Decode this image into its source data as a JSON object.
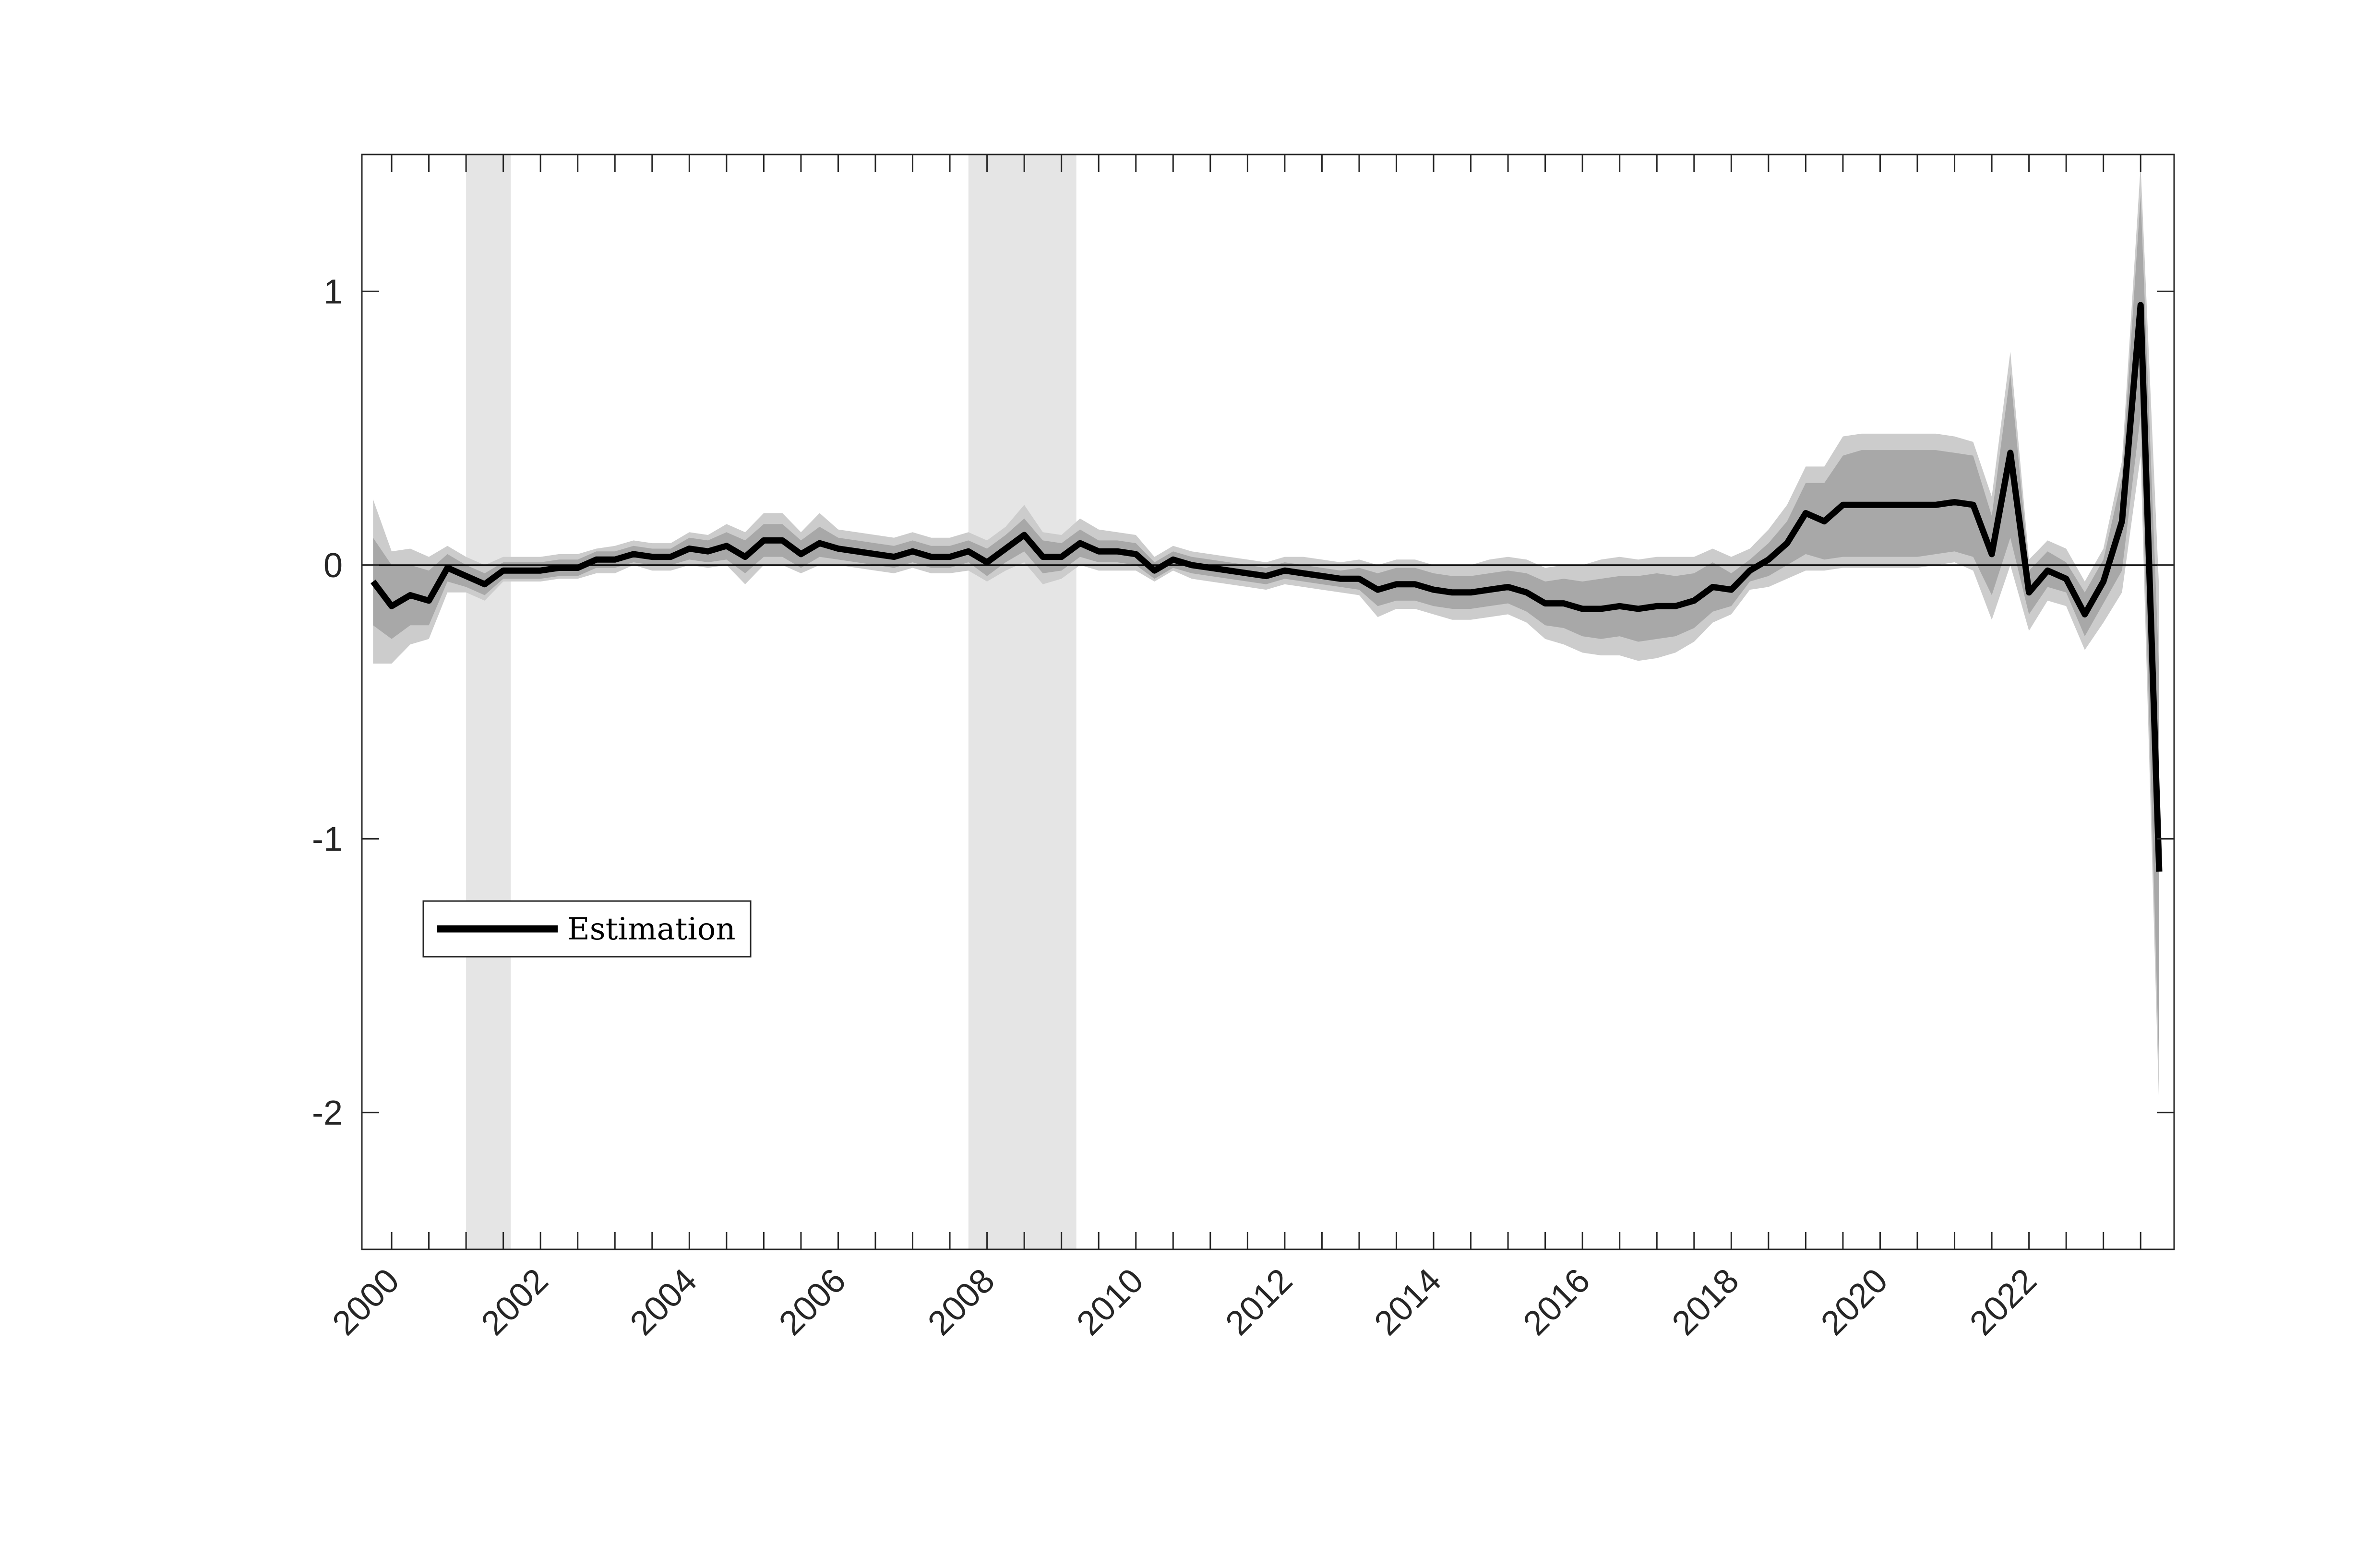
{
  "chart_data": {
    "type": "line",
    "title": "",
    "xlabel": "",
    "ylabel": "",
    "xlim": [
      1999.6,
      2023.95
    ],
    "ylim": [
      -2.5,
      1.5
    ],
    "yticks": [
      1,
      0,
      -1,
      -2
    ],
    "ytick_labels": [
      "1",
      "0",
      "-1",
      "-2"
    ],
    "xticks": [
      2000,
      2002,
      2004,
      2006,
      2008,
      2010,
      2012,
      2014,
      2016,
      2018,
      2020,
      2022
    ],
    "xtick_labels": [
      "2000",
      "2002",
      "2004",
      "2006",
      "2008",
      "2010",
      "2012",
      "2014",
      "2016",
      "2018",
      "2020",
      "2022"
    ],
    "grid": false,
    "zero_line": 0,
    "legend": {
      "position": "center-left",
      "entries": [
        "Estimation"
      ]
    },
    "shaded_periods": [
      {
        "start": 2001.0,
        "end": 2001.6
      },
      {
        "start": 2007.75,
        "end": 2009.2
      }
    ],
    "series": [
      {
        "name": "Estimation",
        "color": "#000000",
        "x": [
          1999.75,
          2000.0,
          2000.25,
          2000.5,
          2000.75,
          2001.0,
          2001.25,
          2001.5,
          2001.75,
          2002.0,
          2002.25,
          2002.5,
          2002.75,
          2003.0,
          2003.25,
          2003.5,
          2003.75,
          2004.0,
          2004.25,
          2004.5,
          2004.75,
          2005.0,
          2005.25,
          2005.5,
          2005.75,
          2006.0,
          2006.25,
          2006.5,
          2006.75,
          2007.0,
          2007.25,
          2007.5,
          2007.75,
          2008.0,
          2008.25,
          2008.5,
          2008.75,
          2009.0,
          2009.25,
          2009.5,
          2009.75,
          2010.0,
          2010.25,
          2010.5,
          2010.75,
          2011.0,
          2011.25,
          2011.5,
          2011.75,
          2012.0,
          2012.25,
          2012.5,
          2012.75,
          2013.0,
          2013.25,
          2013.5,
          2013.75,
          2014.0,
          2014.25,
          2014.5,
          2014.75,
          2015.0,
          2015.25,
          2015.5,
          2015.75,
          2016.0,
          2016.25,
          2016.5,
          2016.75,
          2017.0,
          2017.25,
          2017.5,
          2017.75,
          2018.0,
          2018.25,
          2018.5,
          2018.75,
          2019.0,
          2019.25,
          2019.5,
          2019.75,
          2020.0,
          2020.25,
          2020.5,
          2020.75,
          2021.0,
          2021.25,
          2021.5,
          2021.75,
          2022.0,
          2022.25,
          2022.5,
          2022.75,
          2023.0,
          2023.25,
          2023.5,
          2023.75
        ],
        "y": [
          -0.06,
          -0.15,
          -0.11,
          -0.13,
          -0.01,
          -0.04,
          -0.07,
          -0.02,
          -0.02,
          -0.02,
          -0.01,
          -0.01,
          0.02,
          0.02,
          0.04,
          0.03,
          0.03,
          0.06,
          0.05,
          0.07,
          0.03,
          0.09,
          0.09,
          0.04,
          0.08,
          0.06,
          0.05,
          0.04,
          0.03,
          0.05,
          0.03,
          0.03,
          0.05,
          0.01,
          0.06,
          0.11,
          0.03,
          0.03,
          0.08,
          0.05,
          0.05,
          0.04,
          -0.02,
          0.02,
          0.0,
          -0.01,
          -0.02,
          -0.03,
          -0.04,
          -0.02,
          -0.03,
          -0.04,
          -0.05,
          -0.05,
          -0.09,
          -0.07,
          -0.07,
          -0.09,
          -0.1,
          -0.1,
          -0.09,
          -0.08,
          -0.1,
          -0.14,
          -0.14,
          -0.16,
          -0.16,
          -0.15,
          -0.16,
          -0.15,
          -0.15,
          -0.13,
          -0.08,
          -0.09,
          -0.02,
          0.02,
          0.08,
          0.19,
          0.16,
          0.22,
          0.22,
          0.22,
          0.22,
          0.22,
          0.22,
          0.23,
          0.22,
          0.04,
          0.41,
          -0.1,
          -0.02,
          -0.05,
          -0.18,
          -0.06,
          0.16,
          0.95,
          -1.12
        ],
        "band_inner": [
          [
            -0.22,
            0.1
          ],
          [
            -0.27,
            0.0
          ],
          [
            -0.22,
            0.0
          ],
          [
            -0.22,
            -0.02
          ],
          [
            -0.06,
            0.04
          ],
          [
            -0.08,
            0.0
          ],
          [
            -0.11,
            -0.03
          ],
          [
            -0.05,
            0.01
          ],
          [
            -0.05,
            0.01
          ],
          [
            -0.05,
            0.01
          ],
          [
            -0.04,
            0.02
          ],
          [
            -0.04,
            0.02
          ],
          [
            -0.01,
            0.05
          ],
          [
            -0.01,
            0.05
          ],
          [
            0.01,
            0.07
          ],
          [
            0.0,
            0.06
          ],
          [
            0.0,
            0.06
          ],
          [
            0.02,
            0.1
          ],
          [
            0.01,
            0.09
          ],
          [
            0.02,
            0.12
          ],
          [
            -0.03,
            0.09
          ],
          [
            0.03,
            0.15
          ],
          [
            0.03,
            0.15
          ],
          [
            -0.01,
            0.09
          ],
          [
            0.03,
            0.14
          ],
          [
            0.02,
            0.1
          ],
          [
            0.01,
            0.09
          ],
          [
            0.0,
            0.08
          ],
          [
            -0.01,
            0.07
          ],
          [
            0.01,
            0.09
          ],
          [
            -0.01,
            0.07
          ],
          [
            -0.01,
            0.07
          ],
          [
            0.01,
            0.09
          ],
          [
            -0.04,
            0.06
          ],
          [
            0.01,
            0.11
          ],
          [
            0.05,
            0.17
          ],
          [
            -0.03,
            0.09
          ],
          [
            -0.02,
            0.08
          ],
          [
            0.03,
            0.13
          ],
          [
            0.01,
            0.09
          ],
          [
            0.01,
            0.09
          ],
          [
            0.0,
            0.08
          ],
          [
            -0.05,
            0.01
          ],
          [
            -0.01,
            0.05
          ],
          [
            -0.03,
            0.03
          ],
          [
            -0.04,
            0.02
          ],
          [
            -0.05,
            0.01
          ],
          [
            -0.06,
            0.0
          ],
          [
            -0.07,
            -0.01
          ],
          [
            -0.05,
            0.01
          ],
          [
            -0.06,
            0.0
          ],
          [
            -0.07,
            -0.01
          ],
          [
            -0.08,
            -0.02
          ],
          [
            -0.09,
            -0.01
          ],
          [
            -0.15,
            -0.03
          ],
          [
            -0.13,
            -0.01
          ],
          [
            -0.13,
            -0.01
          ],
          [
            -0.15,
            -0.03
          ],
          [
            -0.16,
            -0.04
          ],
          [
            -0.16,
            -0.04
          ],
          [
            -0.15,
            -0.03
          ],
          [
            -0.14,
            -0.02
          ],
          [
            -0.17,
            -0.03
          ],
          [
            -0.22,
            -0.06
          ],
          [
            -0.23,
            -0.05
          ],
          [
            -0.26,
            -0.06
          ],
          [
            -0.27,
            -0.05
          ],
          [
            -0.26,
            -0.04
          ],
          [
            -0.28,
            -0.04
          ],
          [
            -0.27,
            -0.03
          ],
          [
            -0.26,
            -0.04
          ],
          [
            -0.23,
            -0.03
          ],
          [
            -0.17,
            0.01
          ],
          [
            -0.15,
            -0.03
          ],
          [
            -0.06,
            0.02
          ],
          [
            -0.04,
            0.08
          ],
          [
            0.0,
            0.16
          ],
          [
            0.04,
            0.3
          ],
          [
            0.02,
            0.3
          ],
          [
            0.03,
            0.4
          ],
          [
            0.03,
            0.42
          ],
          [
            0.03,
            0.42
          ],
          [
            0.03,
            0.42
          ],
          [
            0.03,
            0.42
          ],
          [
            0.04,
            0.42
          ],
          [
            0.05,
            0.41
          ],
          [
            0.03,
            0.4
          ],
          [
            -0.11,
            0.18
          ],
          [
            0.1,
            0.7
          ],
          [
            -0.18,
            -0.02
          ],
          [
            -0.08,
            0.05
          ],
          [
            -0.1,
            0.01
          ],
          [
            -0.26,
            -0.1
          ],
          [
            -0.14,
            0.02
          ],
          [
            -0.02,
            0.32
          ],
          [
            0.55,
            1.35
          ],
          [
            -1.85,
            -0.4
          ]
        ],
        "band_outer": [
          [
            -0.36,
            0.24
          ],
          [
            -0.36,
            0.05
          ],
          [
            -0.29,
            0.06
          ],
          [
            -0.27,
            0.03
          ],
          [
            -0.1,
            0.07
          ],
          [
            -0.1,
            0.03
          ],
          [
            -0.13,
            0.0
          ],
          [
            -0.06,
            0.03
          ],
          [
            -0.06,
            0.03
          ],
          [
            -0.06,
            0.03
          ],
          [
            -0.05,
            0.04
          ],
          [
            -0.05,
            0.04
          ],
          [
            -0.03,
            0.06
          ],
          [
            -0.03,
            0.07
          ],
          [
            0.0,
            0.09
          ],
          [
            -0.02,
            0.08
          ],
          [
            -0.02,
            0.08
          ],
          [
            0.0,
            0.12
          ],
          [
            -0.01,
            0.11
          ],
          [
            0.0,
            0.15
          ],
          [
            -0.07,
            0.12
          ],
          [
            0.0,
            0.19
          ],
          [
            0.0,
            0.19
          ],
          [
            -0.03,
            0.12
          ],
          [
            0.0,
            0.19
          ],
          [
            0.0,
            0.13
          ],
          [
            -0.01,
            0.12
          ],
          [
            -0.02,
            0.11
          ],
          [
            -0.03,
            0.1
          ],
          [
            -0.01,
            0.12
          ],
          [
            -0.03,
            0.1
          ],
          [
            -0.03,
            0.1
          ],
          [
            -0.02,
            0.12
          ],
          [
            -0.06,
            0.09
          ],
          [
            -0.02,
            0.14
          ],
          [
            0.01,
            0.22
          ],
          [
            -0.07,
            0.12
          ],
          [
            -0.05,
            0.11
          ],
          [
            0.0,
            0.17
          ],
          [
            -0.02,
            0.13
          ],
          [
            -0.02,
            0.12
          ],
          [
            -0.02,
            0.11
          ],
          [
            -0.06,
            0.03
          ],
          [
            -0.02,
            0.07
          ],
          [
            -0.05,
            0.05
          ],
          [
            -0.06,
            0.04
          ],
          [
            -0.07,
            0.03
          ],
          [
            -0.08,
            0.02
          ],
          [
            -0.09,
            0.01
          ],
          [
            -0.07,
            0.03
          ],
          [
            -0.08,
            0.03
          ],
          [
            -0.09,
            0.02
          ],
          [
            -0.1,
            0.01
          ],
          [
            -0.11,
            0.02
          ],
          [
            -0.19,
            0.0
          ],
          [
            -0.16,
            0.02
          ],
          [
            -0.16,
            0.02
          ],
          [
            -0.18,
            0.0
          ],
          [
            -0.2,
            0.0
          ],
          [
            -0.2,
            0.0
          ],
          [
            -0.19,
            0.02
          ],
          [
            -0.18,
            0.03
          ],
          [
            -0.21,
            0.02
          ],
          [
            -0.27,
            -0.01
          ],
          [
            -0.29,
            0.0
          ],
          [
            -0.32,
            0.0
          ],
          [
            -0.33,
            0.02
          ],
          [
            -0.33,
            0.03
          ],
          [
            -0.35,
            0.02
          ],
          [
            -0.34,
            0.03
          ],
          [
            -0.32,
            0.03
          ],
          [
            -0.28,
            0.03
          ],
          [
            -0.21,
            0.06
          ],
          [
            -0.18,
            0.03
          ],
          [
            -0.09,
            0.06
          ],
          [
            -0.08,
            0.13
          ],
          [
            -0.05,
            0.22
          ],
          [
            -0.02,
            0.36
          ],
          [
            -0.02,
            0.36
          ],
          [
            -0.01,
            0.47
          ],
          [
            -0.01,
            0.48
          ],
          [
            -0.01,
            0.48
          ],
          [
            -0.01,
            0.48
          ],
          [
            -0.01,
            0.48
          ],
          [
            0.0,
            0.48
          ],
          [
            0.01,
            0.47
          ],
          [
            -0.02,
            0.45
          ],
          [
            -0.2,
            0.25
          ],
          [
            0.0,
            0.78
          ],
          [
            -0.24,
            0.02
          ],
          [
            -0.13,
            0.09
          ],
          [
            -0.15,
            0.06
          ],
          [
            -0.31,
            -0.06
          ],
          [
            -0.21,
            0.06
          ],
          [
            -0.1,
            0.38
          ],
          [
            0.4,
            1.46
          ],
          [
            -2.0,
            -0.1
          ]
        ]
      }
    ]
  }
}
